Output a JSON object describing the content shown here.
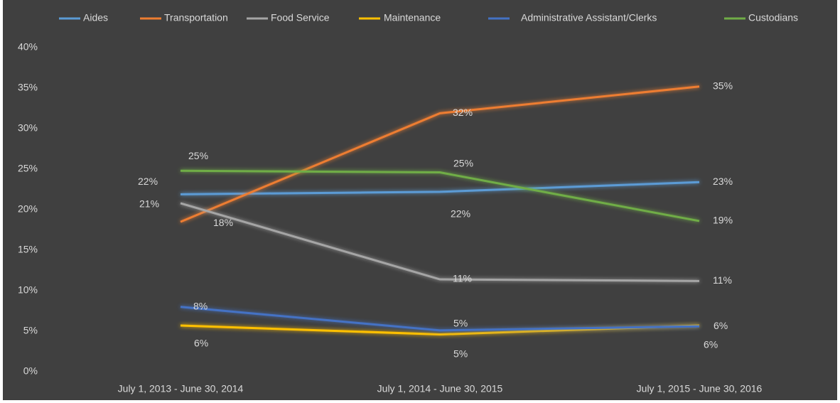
{
  "chart_data": {
    "type": "line",
    "categories": [
      "July 1, 2013 - June 30, 2014",
      "July 1, 2014 - June 30, 2015",
      "July 1, 2015 - June 30, 2016"
    ],
    "series": [
      {
        "name": "Aides",
        "color": "#5b9bd5",
        "values": [
          21.9,
          22.2,
          23.4
        ],
        "value_labels": [
          "22%",
          "22%",
          "23%"
        ]
      },
      {
        "name": "Transportation",
        "color": "#ed7d31",
        "values": [
          18.5,
          31.9,
          35.2
        ],
        "value_labels": [
          "18%",
          "32%",
          "35%"
        ]
      },
      {
        "name": "Food Service",
        "color": "#a5a5a5",
        "values": [
          20.8,
          11.4,
          11.2
        ],
        "value_labels": [
          "21%",
          "11%",
          "11%"
        ]
      },
      {
        "name": "Maintenance",
        "color": "#ffc000",
        "values": [
          5.7,
          4.6,
          5.7
        ],
        "value_labels": [
          "6%",
          "5%",
          "6%"
        ]
      },
      {
        "name": "Administrative Assistant/Clerks",
        "color": "#4472c4",
        "values": [
          8.0,
          5.1,
          5.6
        ],
        "value_labels": [
          "8%",
          "5%",
          "6%"
        ]
      },
      {
        "name": "Custodians",
        "color": "#70ad47",
        "values": [
          24.8,
          24.6,
          18.6
        ],
        "value_labels": [
          "25%",
          "25%",
          "19%"
        ]
      }
    ],
    "ylim": [
      0,
      40
    ],
    "yticks": [
      {
        "value": 0,
        "label": "0%"
      },
      {
        "value": 5,
        "label": "5%"
      },
      {
        "value": 10,
        "label": "10%"
      },
      {
        "value": 15,
        "label": "15%"
      },
      {
        "value": 20,
        "label": "20%"
      },
      {
        "value": 25,
        "label": "25%"
      },
      {
        "value": 30,
        "label": "30%"
      },
      {
        "value": 35,
        "label": "35%"
      },
      {
        "value": 40,
        "label": "40%"
      }
    ],
    "legend": "top"
  }
}
